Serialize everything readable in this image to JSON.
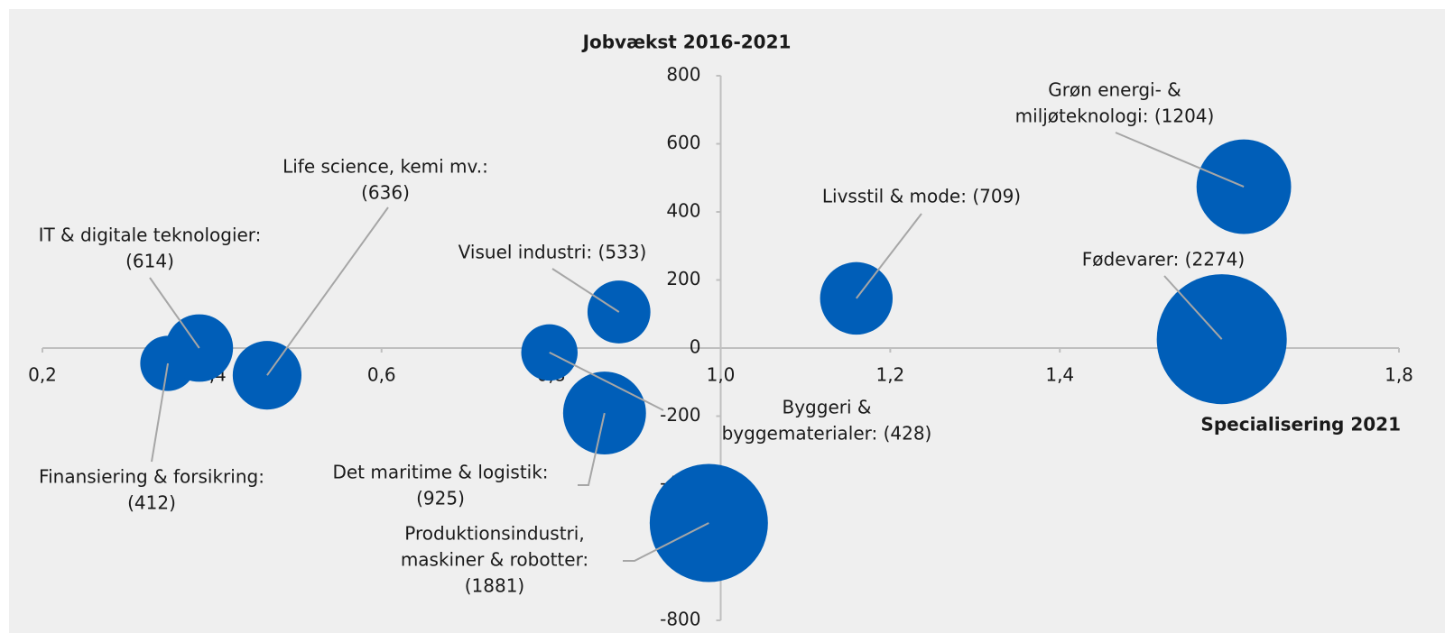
{
  "chart_data": {
    "type": "bubble",
    "title": "Jobvækst 2016-2021",
    "x_label": "Specialisering 2021",
    "color": "#005EB8",
    "x": [
      0.348,
      0.385,
      0.465,
      0.798,
      0.88,
      0.863,
      0.986,
      1.16,
      1.617,
      1.591
    ],
    "values": [
      -45,
      0,
      -80,
      -13,
      106,
      -191,
      -514,
      146,
      474,
      26
    ],
    "sizes": [
      412,
      614,
      636,
      428,
      533,
      925,
      1881,
      709,
      1204,
      2274
    ],
    "value_labels": [
      [
        "Finansiering & forsikring:",
        "(412)"
      ],
      [
        "IT & digitale teknologier:",
        "(614)"
      ],
      [
        "Life science, kemi mv.:",
        "(636)"
      ],
      [
        "Byggeri &",
        "byggematerialer: (428)"
      ],
      [
        "Visuel industri: (533)"
      ],
      [
        "Det maritime & logistik:",
        "(925)"
      ],
      [
        "Produktionsindustri,",
        "maskiner & robotter:",
        "(1881)"
      ],
      [
        "Livsstil & mode: (709)"
      ],
      [
        "Grøn energi- &",
        "miljøteknologi: (1204)"
      ],
      [
        "Fødevarer: (2274)"
      ]
    ],
    "xlim": [
      0.2,
      1.8
    ],
    "xticks": [
      {
        "value": 0.2,
        "label": "0,2"
      },
      {
        "value": 0.4,
        "label": "0,4"
      },
      {
        "value": 0.6,
        "label": "0,6"
      },
      {
        "value": 0.8,
        "label": "0,8"
      },
      {
        "value": 1.0,
        "label": "1,0"
      },
      {
        "value": 1.2,
        "label": "1,2"
      },
      {
        "value": 1.4,
        "label": "1,4"
      },
      {
        "value": 1.6,
        "label": "1,6"
      },
      {
        "value": 1.8,
        "label": "1,8"
      }
    ],
    "ylim": [
      -800,
      800
    ],
    "yticks": [
      -800,
      -600,
      -400,
      -200,
      0,
      200,
      400,
      600,
      800
    ]
  }
}
